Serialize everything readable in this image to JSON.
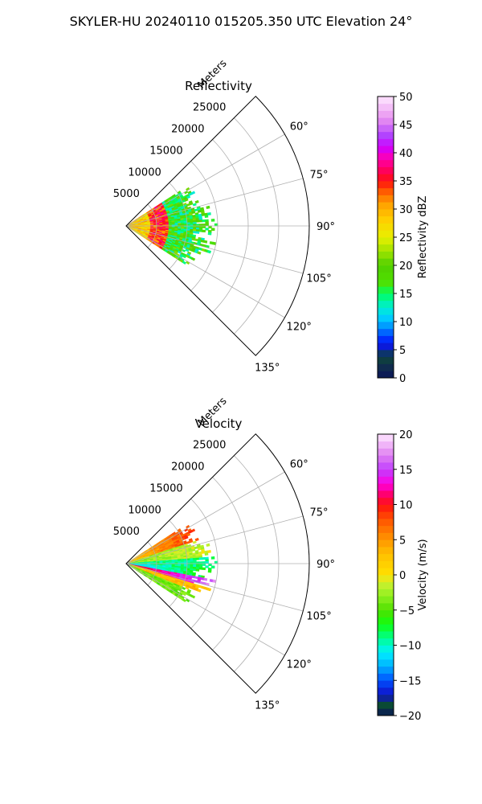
{
  "figure": {
    "suptitle": "SKYLER-HU  20240110  015205.350 UTC Elevation 24°"
  },
  "chart_data": [
    {
      "type": "heatmap",
      "projection": "polar-sector",
      "title": "Reflectivity",
      "radial_axis_label": "Meters",
      "radial_ticks": [
        5000,
        10000,
        15000,
        20000,
        25000
      ],
      "radial_tick_labels": [
        "5000",
        "10000",
        "15000",
        "20000",
        "25000"
      ],
      "angular_ticks_deg": [
        60,
        75,
        90,
        105,
        120,
        135
      ],
      "angular_tick_labels": [
        "60°",
        "75°",
        "90°",
        "105°",
        "120°",
        "135°"
      ],
      "sector_deg": [
        45,
        135
      ],
      "rmax": 30000,
      "grid": true,
      "data_extent": {
        "azimuth_deg": [
          57,
          123
        ],
        "range_m": [
          0,
          16000
        ]
      },
      "features": [
        {
          "description": "high reflectivity band 30-40 dBZ",
          "range_m": [
            4000,
            7000
          ]
        },
        {
          "description": "moderate 20-30 dBZ",
          "range_m": [
            0,
            4000
          ]
        },
        {
          "description": "light 12-22 dBZ",
          "range_m": [
            7000,
            16000
          ]
        }
      ],
      "colorbar": {
        "label": "Reflectivity dBZ",
        "vmin": 0,
        "vmax": 50,
        "ticks": [
          0,
          5,
          10,
          15,
          20,
          25,
          30,
          35,
          40,
          45,
          50
        ],
        "tick_labels": [
          "0",
          "5",
          "10",
          "15",
          "20",
          "25",
          "30",
          "35",
          "40",
          "45",
          "50"
        ],
        "stops": [
          {
            "v": 0,
            "c": "#0a1458"
          },
          {
            "v": 2.5,
            "c": "#12334a"
          },
          {
            "v": 4,
            "c": "#0a4a35"
          },
          {
            "v": 5,
            "c": "#1010c8"
          },
          {
            "v": 7,
            "c": "#0030ff"
          },
          {
            "v": 9,
            "c": "#0090ff"
          },
          {
            "v": 11,
            "c": "#00d8ff"
          },
          {
            "v": 13,
            "c": "#00f0c0"
          },
          {
            "v": 15,
            "c": "#00ff60"
          },
          {
            "v": 17,
            "c": "#50e000"
          },
          {
            "v": 20,
            "c": "#50d000"
          },
          {
            "v": 22,
            "c": "#90e000"
          },
          {
            "v": 25,
            "c": "#e8f000"
          },
          {
            "v": 28,
            "c": "#ffd000"
          },
          {
            "v": 31,
            "c": "#ffa000"
          },
          {
            "v": 33,
            "c": "#ff6000"
          },
          {
            "v": 35,
            "c": "#ff1010"
          },
          {
            "v": 37,
            "c": "#ff0060"
          },
          {
            "v": 39,
            "c": "#ff00b0"
          },
          {
            "v": 41,
            "c": "#d000ff"
          },
          {
            "v": 43,
            "c": "#b040ff"
          },
          {
            "v": 46,
            "c": "#e890f0"
          },
          {
            "v": 50,
            "c": "#ffe8ff"
          }
        ]
      }
    },
    {
      "type": "heatmap",
      "projection": "polar-sector",
      "title": "Velocity",
      "radial_axis_label": "Meters",
      "radial_ticks": [
        5000,
        10000,
        15000,
        20000,
        25000
      ],
      "radial_tick_labels": [
        "5000",
        "10000",
        "15000",
        "20000",
        "25000"
      ],
      "angular_ticks_deg": [
        60,
        75,
        90,
        105,
        120,
        135
      ],
      "angular_tick_labels": [
        "60°",
        "75°",
        "90°",
        "105°",
        "120°",
        "135°"
      ],
      "sector_deg": [
        45,
        135
      ],
      "rmax": 30000,
      "grid": true,
      "data_extent": {
        "azimuth_deg": [
          57,
          123
        ],
        "range_m": [
          0,
          16000
        ]
      },
      "features": [
        {
          "description": "receding (positive) velocities 0 to +12 m/s on northern half",
          "azimuth_deg": [
            57,
            88
          ]
        },
        {
          "description": "approaching (negative) -12 to -7 m/s near 90-100 deg",
          "azimuth_deg": [
            88,
            102
          ]
        },
        {
          "description": "positive +10 to +20 m/s band south of center",
          "azimuth_deg": [
            100,
            112
          ]
        }
      ],
      "colorbar": {
        "label": "Velocity (m/s)",
        "vmin": -20,
        "vmax": 20,
        "ticks": [
          -20,
          -15,
          -10,
          -5,
          0,
          5,
          10,
          15,
          20
        ],
        "tick_labels": [
          "−20",
          "−15",
          "−10",
          "−5",
          "0",
          "5",
          "10",
          "15",
          "20"
        ],
        "stops": [
          {
            "v": -20,
            "c": "#0a1458"
          },
          {
            "v": -18.5,
            "c": "#0a4a35"
          },
          {
            "v": -17,
            "c": "#1010c8"
          },
          {
            "v": -15,
            "c": "#0050ff"
          },
          {
            "v": -13,
            "c": "#00b0ff"
          },
          {
            "v": -11,
            "c": "#00f0ff"
          },
          {
            "v": -9,
            "c": "#00ff90"
          },
          {
            "v": -7,
            "c": "#10ff10"
          },
          {
            "v": -5,
            "c": "#50e000"
          },
          {
            "v": -3,
            "c": "#90f020"
          },
          {
            "v": -1,
            "c": "#d0f030"
          },
          {
            "v": 0,
            "c": "#ffe000"
          },
          {
            "v": 3,
            "c": "#ffc000"
          },
          {
            "v": 6,
            "c": "#ff8000"
          },
          {
            "v": 8,
            "c": "#ff5000"
          },
          {
            "v": 10,
            "c": "#ff1010"
          },
          {
            "v": 11.5,
            "c": "#ff0070"
          },
          {
            "v": 13,
            "c": "#ff00e0"
          },
          {
            "v": 15,
            "c": "#c040ff"
          },
          {
            "v": 17,
            "c": "#e080f0"
          },
          {
            "v": 20,
            "c": "#ffe8ff"
          }
        ]
      }
    }
  ]
}
